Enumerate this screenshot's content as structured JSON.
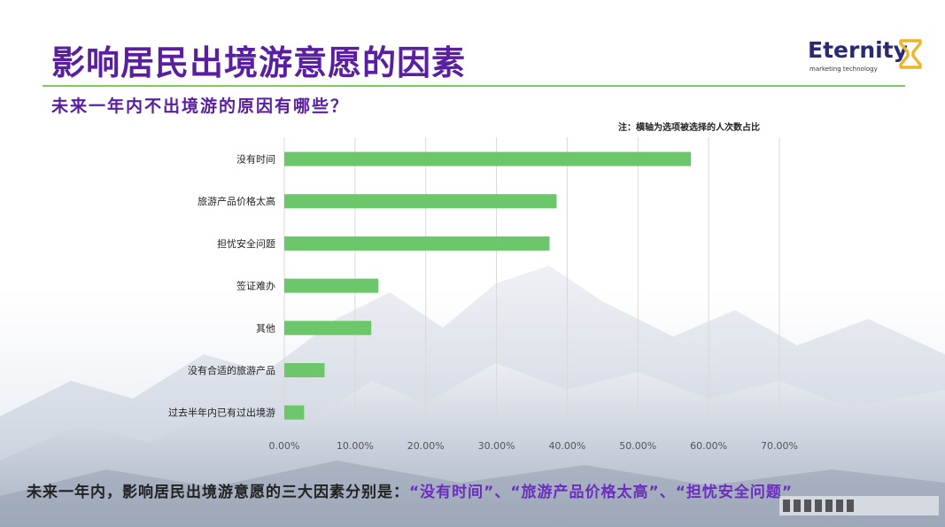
{
  "title": "影响居民出境游意愿的因素",
  "logo": {
    "name": "Eternity",
    "tagline": "marketing technology",
    "icon": "hourglass-icon",
    "brand_color": "#2a2a6e",
    "icon_color": "#f0b429"
  },
  "subtitle": "未来一年内不出境游的原因有哪些？",
  "note": "注：横轴为选项被选择的人次数占比",
  "chart_data": {
    "type": "bar",
    "orientation": "horizontal",
    "categories": [
      "没有时间",
      "旅游产品价格太高",
      "担忧安全问题",
      "签证难办",
      "其他",
      "没有合适的旅游产品",
      "过去半年内已有过出境游"
    ],
    "values": [
      57.5,
      38.5,
      37.5,
      13.3,
      12.3,
      5.7,
      2.8
    ],
    "x_ticks": [
      "0.00%",
      "10.00%",
      "20.00%",
      "30.00%",
      "40.00%",
      "50.00%",
      "60.00%",
      "70.00%"
    ],
    "xlim": [
      0,
      70
    ],
    "bar_color": "#6cc76a",
    "grid": true
  },
  "conclusion": {
    "prefix": "未来一年内，影响居民出境游意愿的三大因素分别是：",
    "f1": "“没有时间”",
    "sep1": "、",
    "f2": "“旅游产品价格太高”",
    "sep2": "、",
    "f3": "“担忧安全问题”"
  },
  "colors": {
    "title": "#5a1ea0",
    "accent_line": "#7ccc5c",
    "highlight": "#6a2dc0"
  }
}
